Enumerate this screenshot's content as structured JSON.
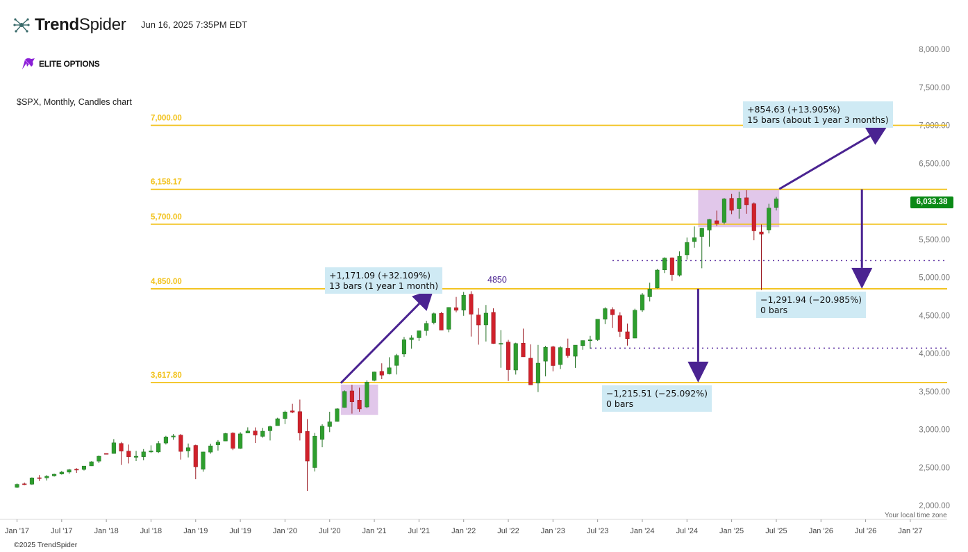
{
  "header": {
    "brand_bold": "Trend",
    "brand_light": "Spider",
    "timestamp": "Jun 16, 2025 7:35PM EDT",
    "elite_label": "ELITE OPTIONS",
    "symbol_line": "$SPX, Monthly, Candles chart",
    "copyright": "©2025 TrendSpider",
    "local_tz": "Your local time zone",
    "current_price": "6,033.38"
  },
  "colors": {
    "up": "#2e9e2e",
    "down": "#d0212b",
    "level": "#f2c21b",
    "arrow": "#4a2391",
    "box_fill": "#cfeaf4",
    "zone_fill": "#dcbde6",
    "price_tag": "#0b8a16"
  },
  "chart_data": {
    "type": "candlestick",
    "timeframe": "Monthly",
    "symbol": "$SPX",
    "ylim": [
      1960,
      8000
    ],
    "y_ticks": [
      "2,000.00",
      "2,500.00",
      "3,000.00",
      "3,500.00",
      "4,000.00",
      "4,500.00",
      "5,000.00",
      "5,500.00",
      "6,000.00",
      "6,500.00",
      "7,000.00",
      "7,500.00",
      "8,000.00"
    ],
    "y_tick_values": [
      2000,
      2500,
      3000,
      3500,
      4000,
      4500,
      5000,
      5500,
      6000,
      6500,
      7000,
      7500,
      8000
    ],
    "x_ticks": [
      "Jan '17",
      "Jul '17",
      "Jan '18",
      "Jul '18",
      "Jan '19",
      "Jul '19",
      "Jan '20",
      "Jul '20",
      "Jan '21",
      "Jul '21",
      "Jan '22",
      "Jul '22",
      "Jan '23",
      "Jul '23",
      "Jan '24",
      "Jul '24",
      "Jan '25",
      "Jul '25",
      "Jan '26",
      "Jul '26",
      "Jan '27"
    ],
    "x_tick_months": [
      0,
      6,
      12,
      18,
      24,
      30,
      36,
      42,
      48,
      54,
      60,
      66,
      72,
      78,
      84,
      90,
      96,
      102,
      108,
      114,
      120
    ],
    "start_month": "Dec 2016",
    "candles": [
      [
        2238,
        2290,
        2230,
        2278
      ],
      [
        2285,
        2301,
        2267,
        2279
      ],
      [
        2280,
        2370,
        2271,
        2363
      ],
      [
        2365,
        2400,
        2322,
        2362
      ],
      [
        2363,
        2399,
        2328,
        2384
      ],
      [
        2389,
        2418,
        2380,
        2411
      ],
      [
        2414,
        2454,
        2406,
        2439
      ],
      [
        2439,
        2480,
        2417,
        2470
      ],
      [
        2477,
        2491,
        2429,
        2471
      ],
      [
        2474,
        2520,
        2460,
        2519
      ],
      [
        2521,
        2582,
        2520,
        2575
      ],
      [
        2583,
        2657,
        2557,
        2648
      ],
      [
        2684,
        2679,
        2673,
        2674
      ],
      [
        2684,
        2873,
        2682,
        2824
      ],
      [
        2816,
        2835,
        2533,
        2714
      ],
      [
        2715,
        2801,
        2553,
        2641
      ],
      [
        2634,
        2718,
        2584,
        2648
      ],
      [
        2642,
        2742,
        2594,
        2705
      ],
      [
        2704,
        2791,
        2691,
        2718
      ],
      [
        2704,
        2848,
        2691,
        2816
      ],
      [
        2821,
        2916,
        2802,
        2901
      ],
      [
        2901,
        2940,
        2864,
        2914
      ],
      [
        2926,
        2940,
        2604,
        2711
      ],
      [
        2717,
        2815,
        2632,
        2760
      ],
      [
        2790,
        2800,
        2346,
        2507
      ],
      [
        2476,
        2708,
        2444,
        2704
      ],
      [
        2702,
        2813,
        2681,
        2784
      ],
      [
        2798,
        2860,
        2722,
        2834
      ],
      [
        2848,
        2954,
        2848,
        2946
      ],
      [
        2952,
        2964,
        2728,
        2752
      ],
      [
        2751,
        2964,
        2744,
        2942
      ],
      [
        2953,
        3028,
        2955,
        2980
      ],
      [
        2980,
        3027,
        2822,
        2926
      ],
      [
        2909,
        3021,
        2891,
        2977
      ],
      [
        2983,
        3050,
        2855,
        3037
      ],
      [
        3050,
        3154,
        3050,
        3141
      ],
      [
        3144,
        3247,
        3070,
        3230
      ],
      [
        3245,
        3337,
        3214,
        3226
      ],
      [
        3235,
        3393,
        2855,
        2954
      ],
      [
        2974,
        3136,
        2192,
        2584
      ],
      [
        2498,
        2954,
        2447,
        2912
      ],
      [
        2869,
        3068,
        2766,
        3044
      ],
      [
        3038,
        3233,
        2965,
        3100
      ],
      [
        3105,
        3279,
        3102,
        3271
      ],
      [
        3289,
        3514,
        3286,
        3500
      ],
      [
        3507,
        3588,
        3209,
        3363
      ],
      [
        3385,
        3549,
        3233,
        3270
      ],
      [
        3296,
        3646,
        3279,
        3622
      ],
      [
        3645,
        3760,
        3633,
        3756
      ],
      [
        3764,
        3870,
        3662,
        3714
      ],
      [
        3731,
        3950,
        3724,
        3811
      ],
      [
        3842,
        3994,
        3723,
        3973
      ],
      [
        3992,
        4218,
        3955,
        4181
      ],
      [
        4181,
        4238,
        4062,
        4204
      ],
      [
        4206,
        4302,
        4165,
        4298
      ],
      [
        4300,
        4430,
        4233,
        4395
      ],
      [
        4406,
        4537,
        4382,
        4523
      ],
      [
        4528,
        4545,
        4306,
        4307
      ],
      [
        4317,
        4608,
        4279,
        4605
      ],
      [
        4602,
        4743,
        4541,
        4567
      ],
      [
        4569,
        4808,
        4495,
        4766
      ],
      [
        4778,
        4818,
        4222,
        4516
      ],
      [
        4506,
        4595,
        4115,
        4374
      ],
      [
        4375,
        4637,
        4157,
        4530
      ],
      [
        4540,
        4593,
        4126,
        4131
      ],
      [
        4130,
        4307,
        3811,
        4132
      ],
      [
        4150,
        4178,
        3637,
        3785
      ],
      [
        3781,
        4141,
        3722,
        4130
      ],
      [
        4135,
        4326,
        3954,
        3955
      ],
      [
        3937,
        4119,
        3584,
        3586
      ],
      [
        3609,
        4112,
        3492,
        3872
      ],
      [
        3898,
        4100,
        3698,
        4080
      ],
      [
        4087,
        4101,
        3765,
        3840
      ],
      [
        3853,
        4095,
        3795,
        4077
      ],
      [
        4069,
        4195,
        3943,
        3970
      ],
      [
        3963,
        4110,
        3809,
        4109
      ],
      [
        4102,
        4170,
        4048,
        4169
      ],
      [
        4166,
        4231,
        4062,
        4180
      ],
      [
        4180,
        4450,
        4165,
        4450
      ],
      [
        4450,
        4607,
        4385,
        4589
      ],
      [
        4578,
        4607,
        4336,
        4508
      ],
      [
        4497,
        4541,
        4217,
        4288
      ],
      [
        4284,
        4393,
        4103,
        4194
      ],
      [
        4201,
        4588,
        4200,
        4568
      ],
      [
        4570,
        4794,
        4546,
        4770
      ],
      [
        4745,
        4931,
        4683,
        4846
      ],
      [
        4861,
        5111,
        4854,
        5096
      ],
      [
        5098,
        5264,
        5057,
        5254
      ],
      [
        5257,
        5263,
        4954,
        5036
      ],
      [
        5029,
        5342,
        5011,
        5278
      ],
      [
        5297,
        5524,
        5235,
        5460
      ],
      [
        5471,
        5670,
        5390,
        5522
      ],
      [
        5538,
        5651,
        5120,
        5648
      ],
      [
        5623,
        5767,
        5403,
        5762
      ],
      [
        5745,
        5878,
        5675,
        5705
      ],
      [
        5723,
        6044,
        5697,
        6032
      ],
      [
        6040,
        6100,
        5832,
        5882
      ],
      [
        5904,
        6128,
        5773,
        6041
      ],
      [
        6047,
        6147,
        5837,
        5955
      ],
      [
        5969,
        5986,
        5488,
        5612
      ],
      [
        5598,
        5695,
        4835,
        5569
      ],
      [
        5625,
        5968,
        5578,
        5912
      ],
      [
        5920,
        6059,
        5880,
        6033
      ]
    ],
    "levels": [
      {
        "value": 7000,
        "label": "7,000.00"
      },
      {
        "value": 6158.17,
        "label": "6,158.17"
      },
      {
        "value": 5700,
        "label": "5,700.00"
      },
      {
        "value": 4850,
        "label": "4,850.00"
      },
      {
        "value": 3617.8,
        "label": "3,617.80"
      }
    ],
    "dotted_lines": [
      5220,
      4070
    ],
    "text_marker": {
      "text": "4850",
      "month": 64.5,
      "price": 4930
    },
    "zones": [
      {
        "from_month": 43.5,
        "to_month": 48.5,
        "low": 3190,
        "high": 3590
      },
      {
        "from_month": 91.5,
        "to_month": 102.4,
        "low": 5660,
        "high": 6155
      }
    ],
    "arrows": [
      {
        "from_month": 43.5,
        "from_price": 3610,
        "to_month": 56,
        "to_price": 4850,
        "head": "up"
      },
      {
        "from_month": 102.4,
        "from_price": 6162,
        "to_month": 117,
        "to_price": 7000,
        "head": "up"
      },
      {
        "from_month": 113.5,
        "from_price": 6158,
        "to_month": 113.5,
        "to_price": 4850,
        "head": "down"
      },
      {
        "from_month": 91.5,
        "from_price": 4850,
        "to_month": 91.5,
        "to_price": 3618,
        "head": "down"
      }
    ],
    "measure_boxes": [
      {
        "line1": "+1,171.09 (+32.109%)",
        "line2": "13 bars (1 year 1 month)"
      },
      {
        "line1": "+854.63 (+13.905%)",
        "line2": "15 bars (about 1 year 3 months)"
      },
      {
        "line1": "−1,291.94 (−20.985%)",
        "line2": "0 bars"
      },
      {
        "line1": "−1,215.51 (−25.092%)",
        "line2": "0 bars"
      }
    ]
  }
}
